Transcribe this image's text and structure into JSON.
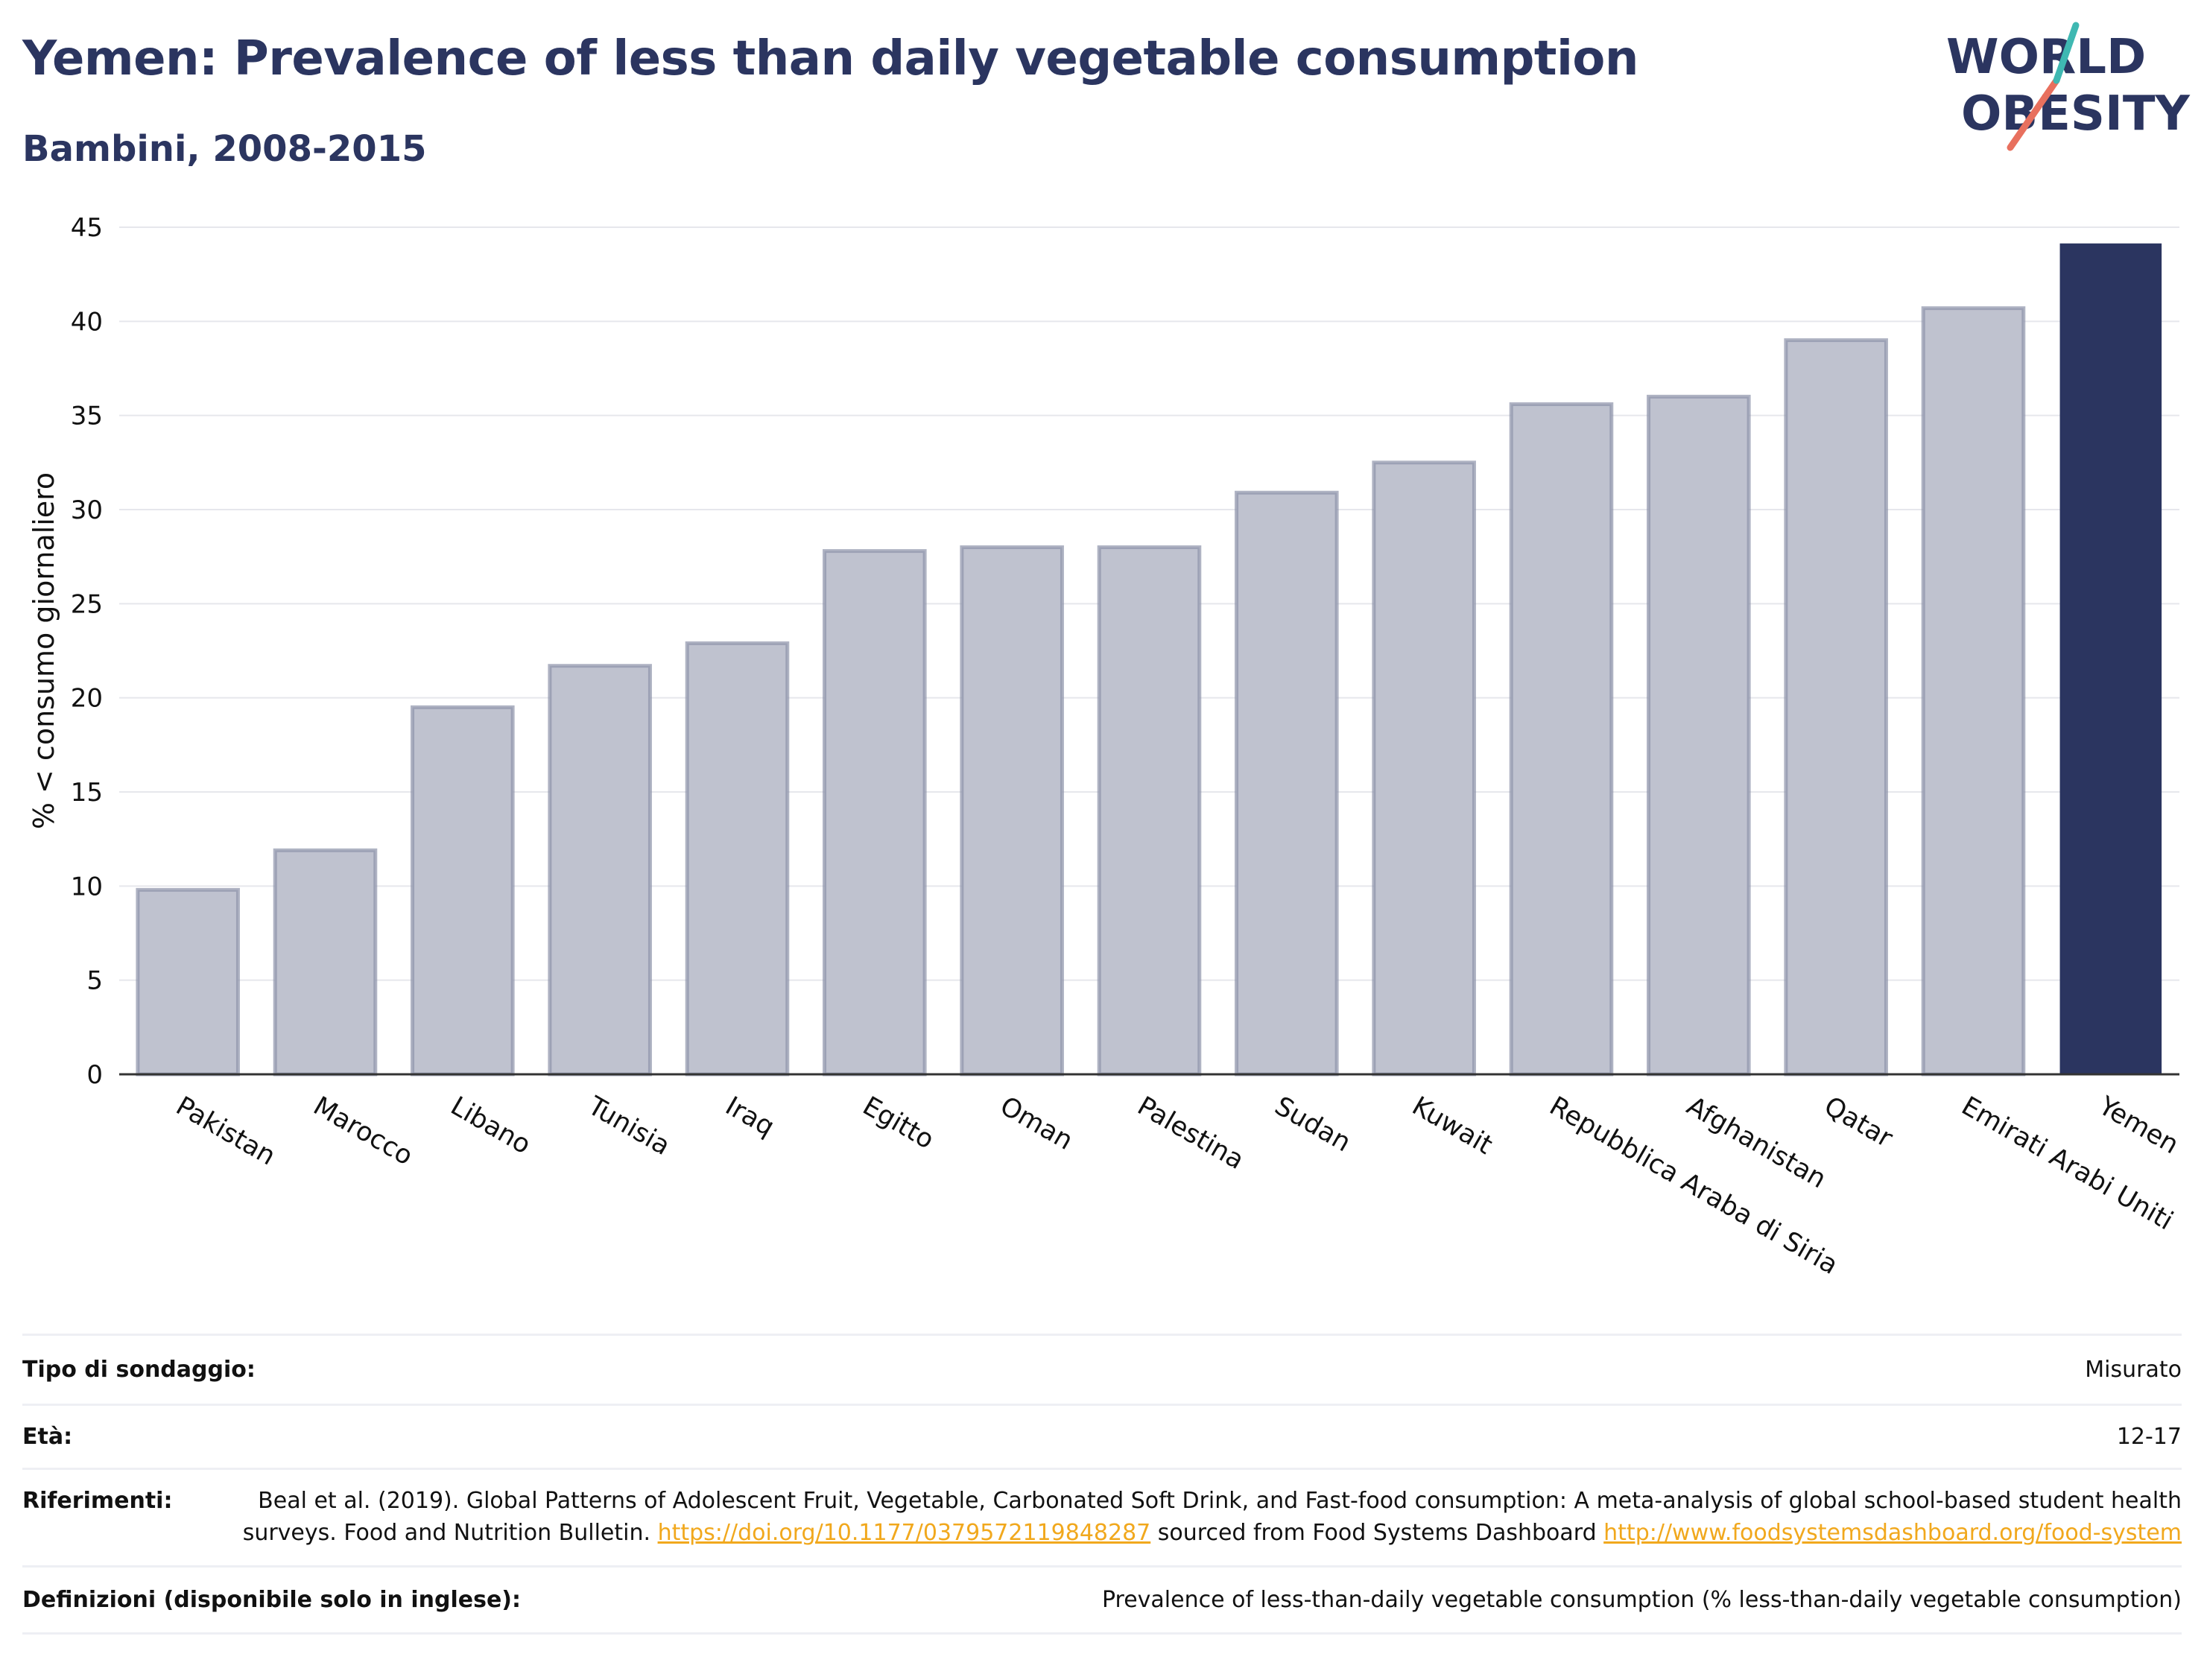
{
  "header": {
    "title": "Yemen: Prevalence of less than daily vegetable consumption",
    "subtitle": "Bambini, 2008-2015"
  },
  "logo": {
    "line1": "WORLD",
    "line2": "OBESITY"
  },
  "colors": {
    "highlight": "#2b3560",
    "bar": "#bfc2cf",
    "bar_outline": "#8d93aa",
    "title": "#2b3560",
    "link": "#f1a81d"
  },
  "chart_data": {
    "type": "bar",
    "categories": [
      "Pakistan",
      "Marocco",
      "Libano",
      "Tunisia",
      "Iraq",
      "Egitto",
      "Oman",
      "Palestina",
      "Sudan",
      "Kuwait",
      "Repubblica Araba di Siria",
      "Afghanistan",
      "Qatar",
      "Emirati Arabi Uniti",
      "Yemen"
    ],
    "values": [
      9.8,
      11.9,
      19.5,
      21.7,
      22.9,
      27.8,
      28.0,
      28.0,
      30.9,
      32.5,
      35.6,
      36.0,
      39.0,
      40.7,
      44.1
    ],
    "highlight": "Yemen",
    "ylabel": "% < consumo giornaliero",
    "ylim": [
      0,
      45
    ],
    "yticks": [
      0,
      5,
      10,
      15,
      20,
      25,
      30,
      35,
      40,
      45
    ],
    "grid": true
  },
  "info": [
    {
      "label": "Tipo di sondaggio:",
      "value": "Misurato"
    },
    {
      "label": "Età:",
      "value": "12-17"
    },
    {
      "label": "Riferimenti:",
      "value_prefix": "Beal et al. (2019). Global Patterns of Adolescent Fruit, Vegetable, Carbonated Soft Drink, and Fast-food consumption: A meta-analysis of global school-based student health surveys. Food and Nutrition Bulletin. ",
      "link1": "https://doi.org/10.1177/0379572119848287",
      "value_middle": " sourced from Food Systems Dashboard ",
      "link2": "http://www.foodsystemsdashboard.org/food-system"
    },
    {
      "label": "Definizioni (disponibile solo in inglese):",
      "value": "Prevalence of less-than-daily vegetable consumption (% less-than-daily vegetable consumption)"
    }
  ]
}
